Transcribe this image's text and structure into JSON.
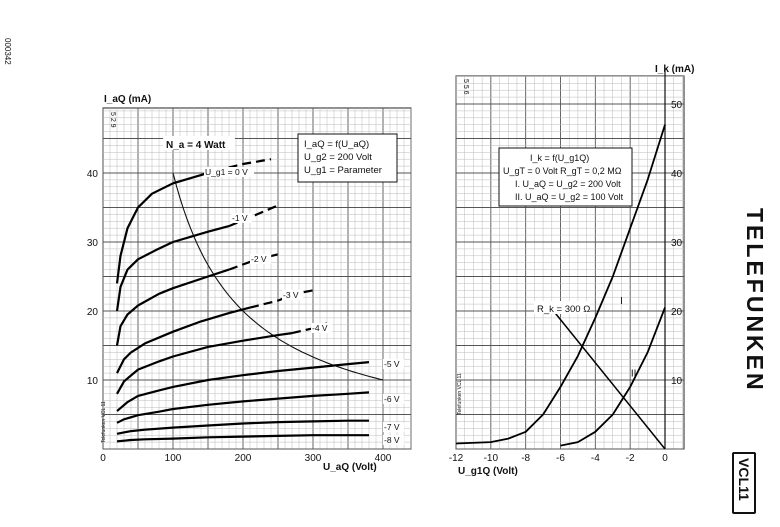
{
  "page": {
    "doc_code": "000342",
    "brand": "TELEFUNKEN",
    "model": "VCL11"
  },
  "chart_data": [
    {
      "type": "line",
      "page_code": "5 2 9",
      "side_note": "Telefunken VCL 11",
      "xlabel": "U_aQ (Volt)",
      "ylabel": "I_aQ (mA)",
      "xlim": [
        0,
        400
      ],
      "ylim": [
        0,
        45
      ],
      "xticks": [
        0,
        100,
        200,
        300,
        400
      ],
      "yticks": [
        10,
        20,
        30,
        40
      ],
      "grid": true,
      "legend_box": [
        "I_aQ = f(U_aQ)",
        "U_g2 = 200 Volt",
        "U_g1 = Parameter"
      ],
      "power_label": "N_a = 4 Watt",
      "power_curve": {
        "watts": 4,
        "x_start": 100,
        "x_end": 400
      },
      "series": [
        {
          "name": "U_g1 = 0 V",
          "points": [
            [
              20,
              24
            ],
            [
              25,
              28
            ],
            [
              35,
              32
            ],
            [
              50,
              35
            ],
            [
              70,
              37
            ],
            [
              100,
              38.5
            ],
            [
              140,
              39.7
            ],
            [
              160,
              40.3
            ]
          ],
          "dashed_points": [
            [
              160,
              40.3
            ],
            [
              200,
              41.3
            ],
            [
              240,
              42
            ]
          ]
        },
        {
          "name": "-1 V",
          "points": [
            [
              20,
              20
            ],
            [
              25,
              23.5
            ],
            [
              35,
              26
            ],
            [
              50,
              27.5
            ],
            [
              75,
              28.8
            ],
            [
              100,
              30
            ],
            [
              150,
              31.5
            ],
            [
              180,
              32.3
            ]
          ],
          "dashed_points": [
            [
              180,
              32.3
            ],
            [
              220,
              34
            ],
            [
              250,
              35.3
            ]
          ]
        },
        {
          "name": "-2 V",
          "points": [
            [
              20,
              15
            ],
            [
              25,
              17.8
            ],
            [
              35,
              19.5
            ],
            [
              50,
              20.8
            ],
            [
              80,
              22.5
            ],
            [
              100,
              23.3
            ],
            [
              150,
              25
            ],
            [
              180,
              26
            ]
          ],
          "dashed_points": [
            [
              180,
              26
            ],
            [
              220,
              27.5
            ],
            [
              250,
              28.2
            ]
          ]
        },
        {
          "name": "-3 V",
          "points": [
            [
              20,
              11
            ],
            [
              30,
              13
            ],
            [
              40,
              14
            ],
            [
              60,
              15.3
            ],
            [
              100,
              17
            ],
            [
              140,
              18.5
            ],
            [
              180,
              19.7
            ],
            [
              210,
              20.5
            ]
          ],
          "dashed_points": [
            [
              210,
              20.5
            ],
            [
              250,
              21.5
            ],
            [
              275,
              22.5
            ],
            [
              300,
              23
            ]
          ]
        },
        {
          "name": "-4 V",
          "points": [
            [
              20,
              8
            ],
            [
              30,
              9.8
            ],
            [
              50,
              11.5
            ],
            [
              80,
              12.7
            ],
            [
              100,
              13.4
            ],
            [
              150,
              14.8
            ],
            [
              200,
              15.7
            ],
            [
              250,
              16.5
            ],
            [
              270,
              16.8
            ]
          ],
          "dashed_points": [
            [
              270,
              16.8
            ],
            [
              300,
              17.5
            ],
            [
              320,
              18.2
            ]
          ]
        },
        {
          "name": "-5 V",
          "points": [
            [
              20,
              5.5
            ],
            [
              35,
              6.8
            ],
            [
              50,
              7.7
            ],
            [
              80,
              8.5
            ],
            [
              100,
              9
            ],
            [
              150,
              10
            ],
            [
              200,
              10.7
            ],
            [
              250,
              11.3
            ],
            [
              300,
              11.8
            ],
            [
              350,
              12.3
            ],
            [
              380,
              12.6
            ]
          ]
        },
        {
          "name": "-6 V",
          "points": [
            [
              20,
              3.8
            ],
            [
              30,
              4.3
            ],
            [
              50,
              4.9
            ],
            [
              80,
              5.4
            ],
            [
              100,
              5.8
            ],
            [
              150,
              6.4
            ],
            [
              200,
              6.9
            ],
            [
              250,
              7.3
            ],
            [
              300,
              7.7
            ],
            [
              350,
              8
            ],
            [
              380,
              8.2
            ]
          ]
        },
        {
          "name": "-7 V",
          "points": [
            [
              20,
              2.2
            ],
            [
              40,
              2.6
            ],
            [
              60,
              2.8
            ],
            [
              100,
              3.1
            ],
            [
              150,
              3.4
            ],
            [
              200,
              3.7
            ],
            [
              250,
              3.9
            ],
            [
              300,
              4
            ],
            [
              350,
              4.1
            ],
            [
              380,
              4.1
            ]
          ]
        },
        {
          "name": "-8 V",
          "points": [
            [
              20,
              1.1
            ],
            [
              40,
              1.3
            ],
            [
              60,
              1.4
            ],
            [
              100,
              1.5
            ],
            [
              150,
              1.7
            ],
            [
              200,
              1.8
            ],
            [
              250,
              1.9
            ],
            [
              300,
              2
            ],
            [
              350,
              2
            ],
            [
              380,
              2
            ]
          ]
        }
      ],
      "curve_labels": [
        "U_g1 = 0 V",
        "-1 V",
        "-2 V",
        "-3 V",
        "-4 V",
        "-5 V",
        "-6 V",
        "-7 V",
        "-8 V"
      ]
    },
    {
      "type": "line",
      "page_code": "5 5 6",
      "side_note": "Telefunken VCL 11",
      "xlabel": "U_g1Q (Volt)",
      "ylabel": "I_k (mA)",
      "xlim": [
        -12,
        0
      ],
      "ylim": [
        0,
        55
      ],
      "xticks": [
        -12,
        -10,
        -8,
        -6,
        -4,
        -2,
        0
      ],
      "yticks": [
        10,
        20,
        30,
        40,
        50
      ],
      "grid": true,
      "legend_box": [
        "I_k = f(U_g1Q)",
        "U_gT = 0 Volt   R_gT = 0,2 MΩ",
        "I. U_aQ = U_g2 = 200 Volt",
        "II. U_aQ = U_g2 = 100 Volt"
      ],
      "resistor_label": "R_k = 300 Ω",
      "resistor_line": [
        [
          -6.4,
          20
        ],
        [
          0,
          0
        ]
      ],
      "series": [
        {
          "name": "I",
          "points": [
            [
              -12,
              0.8
            ],
            [
              -10,
              1
            ],
            [
              -9,
              1.5
            ],
            [
              -8,
              2.5
            ],
            [
              -7,
              5
            ],
            [
              -6,
              9
            ],
            [
              -5,
              13.5
            ],
            [
              -4,
              19
            ],
            [
              -3,
              25
            ],
            [
              -2,
              32
            ],
            [
              -1,
              39
            ],
            [
              0,
              47
            ]
          ]
        },
        {
          "name": "II",
          "points": [
            [
              -6,
              0.5
            ],
            [
              -5,
              1
            ],
            [
              -4,
              2.5
            ],
            [
              -3,
              5
            ],
            [
              -2,
              9
            ],
            [
              -1,
              14
            ],
            [
              0,
              20.5
            ]
          ]
        }
      ]
    }
  ]
}
